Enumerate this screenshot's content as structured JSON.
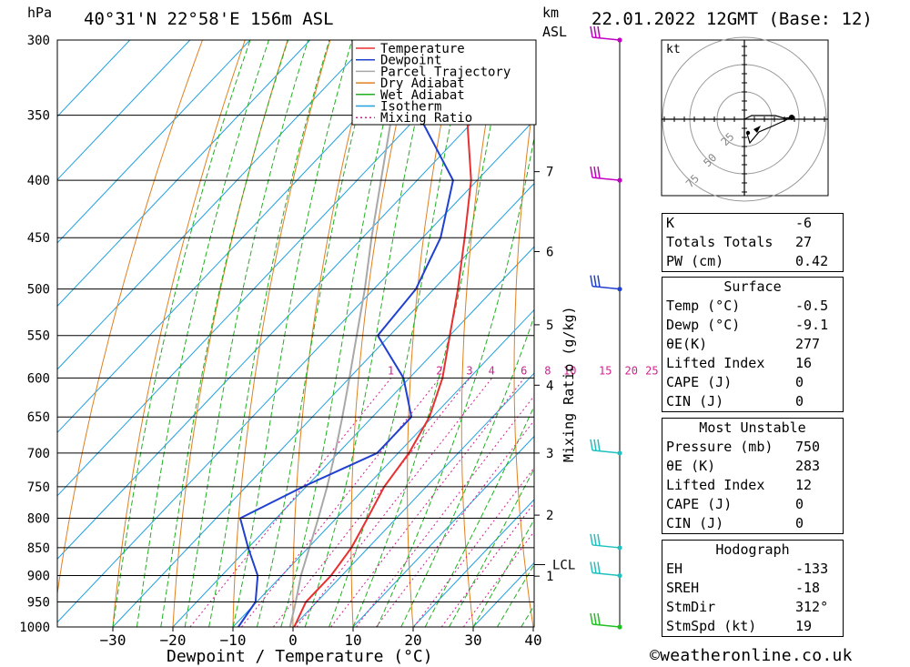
{
  "header": {
    "location": "40°31'N 22°58'E 156m ASL",
    "datetime": "22.01.2022 12GMT (Base: 12)",
    "hpa_label": "hPa",
    "km_label": "km",
    "asl_label": "ASL"
  },
  "legend": [
    {
      "label": "Temperature",
      "color": "#e83030",
      "style": "solid"
    },
    {
      "label": "Dewpoint",
      "color": "#2040d0",
      "style": "solid"
    },
    {
      "label": "Parcel Trajectory",
      "color": "#a8a8a8",
      "style": "solid"
    },
    {
      "label": "Dry Adiabat",
      "color": "#e08020",
      "style": "solid"
    },
    {
      "label": "Wet Adiabat",
      "color": "#20b020",
      "style": "solid"
    },
    {
      "label": "Isotherm",
      "color": "#20a0e0",
      "style": "solid"
    },
    {
      "label": "Mixing Ratio",
      "color": "#d02090",
      "style": "dotted"
    }
  ],
  "axes": {
    "xlabel": "Dewpoint / Temperature (°C)",
    "right_label": "Mixing Ratio (g/kg)",
    "lcl_label": "LCL",
    "hodo_unit": "kt"
  },
  "chart_data": {
    "type": "line",
    "pressure_levels": [
      300,
      350,
      400,
      450,
      500,
      550,
      600,
      650,
      700,
      750,
      800,
      850,
      900,
      950,
      1000
    ],
    "x_ticks": [
      -30,
      -20,
      -10,
      0,
      10,
      20,
      30,
      40
    ],
    "km_ticks": [
      {
        "km": "1",
        "p": 901
      },
      {
        "km": "2",
        "p": 795
      },
      {
        "km": "3",
        "p": 700
      },
      {
        "km": "4",
        "p": 609
      },
      {
        "km": "5",
        "p": 538
      },
      {
        "km": "6",
        "p": 463
      },
      {
        "km": "7",
        "p": 393
      }
    ],
    "lcl_pressure": 880,
    "mixing_ratio_labels": [
      "1",
      "2",
      "3",
      "4",
      "6",
      "8",
      "10",
      "15",
      "20",
      "25"
    ],
    "series": [
      {
        "name": "Temperature",
        "color": "#e83030",
        "points": [
          [
            1000,
            0.2
          ],
          [
            950,
            -1.8
          ],
          [
            900,
            -1.8
          ],
          [
            850,
            -2.8
          ],
          [
            800,
            -4.8
          ],
          [
            750,
            -7
          ],
          [
            700,
            -8.2
          ],
          [
            650,
            -10.5
          ],
          [
            600,
            -14.5
          ],
          [
            550,
            -20
          ],
          [
            500,
            -26
          ],
          [
            450,
            -33
          ],
          [
            400,
            -41
          ],
          [
            350,
            -52
          ],
          [
            300,
            -60
          ]
        ]
      },
      {
        "name": "Dewpoint",
        "color": "#2040d0",
        "points": [
          [
            1000,
            -9.1
          ],
          [
            950,
            -10.2
          ],
          [
            900,
            -14
          ],
          [
            850,
            -20
          ],
          [
            800,
            -26
          ],
          [
            750,
            -20.5
          ],
          [
            700,
            -13.5
          ],
          [
            650,
            -13.5
          ],
          [
            600,
            -21
          ],
          [
            550,
            -32
          ],
          [
            500,
            -33
          ],
          [
            450,
            -37
          ],
          [
            400,
            -44
          ],
          [
            350,
            -60
          ],
          [
            300,
            -74
          ]
        ]
      },
      {
        "name": "Parcel Trajectory",
        "color": "#a8a8a8",
        "points": [
          [
            1000,
            -0.5
          ],
          [
            950,
            -3.5
          ],
          [
            900,
            -6.8
          ],
          [
            850,
            -9.8
          ],
          [
            800,
            -13
          ],
          [
            750,
            -16.5
          ],
          [
            700,
            -20.5
          ],
          [
            650,
            -25
          ],
          [
            600,
            -30
          ],
          [
            550,
            -35.5
          ],
          [
            500,
            -41.5
          ],
          [
            450,
            -48.5
          ],
          [
            400,
            -56
          ],
          [
            350,
            -64.5
          ],
          [
            300,
            -74
          ]
        ]
      }
    ],
    "wind_barbs": [
      {
        "p": 300,
        "color": "#c000c0"
      },
      {
        "p": 400,
        "color": "#c000c0"
      },
      {
        "p": 500,
        "color": "#2040d0"
      },
      {
        "p": 700,
        "color": "#20c0c0"
      },
      {
        "p": 850,
        "color": "#20c0c0"
      },
      {
        "p": 900,
        "color": "#20c0c0"
      },
      {
        "p": 1000,
        "color": "#20c020"
      }
    ]
  },
  "hodograph": {
    "ring_labels": [
      "25",
      "50",
      "75"
    ]
  },
  "indices": {
    "top": [
      {
        "label": "K",
        "value": "-6"
      },
      {
        "label": "Totals Totals",
        "value": "27"
      },
      {
        "label": "PW (cm)",
        "value": "0.42"
      }
    ],
    "surface": {
      "title": "Surface",
      "rows": [
        {
          "label": "Temp (°C)",
          "value": "-0.5"
        },
        {
          "label": "Dewp (°C)",
          "value": "-9.1"
        },
        {
          "label": "θE(K)",
          "value": "277"
        },
        {
          "label": "Lifted Index",
          "value": "16"
        },
        {
          "label": "CAPE (J)",
          "value": "0"
        },
        {
          "label": "CIN (J)",
          "value": "0"
        }
      ]
    },
    "most_unstable": {
      "title": "Most Unstable",
      "rows": [
        {
          "label": "Pressure (mb)",
          "value": "750"
        },
        {
          "label": "θE (K)",
          "value": "283"
        },
        {
          "label": "Lifted Index",
          "value": "12"
        },
        {
          "label": "CAPE (J)",
          "value": "0"
        },
        {
          "label": "CIN (J)",
          "value": "0"
        }
      ]
    },
    "hodograph": {
      "title": "Hodograph",
      "rows": [
        {
          "label": "EH",
          "value": "-133"
        },
        {
          "label": "SREH",
          "value": "-18"
        },
        {
          "label": "StmDir",
          "value": "312°"
        },
        {
          "label": "StmSpd (kt)",
          "value": "19"
        }
      ]
    }
  },
  "footer": {
    "credit": "©weatheronline.co.uk"
  }
}
